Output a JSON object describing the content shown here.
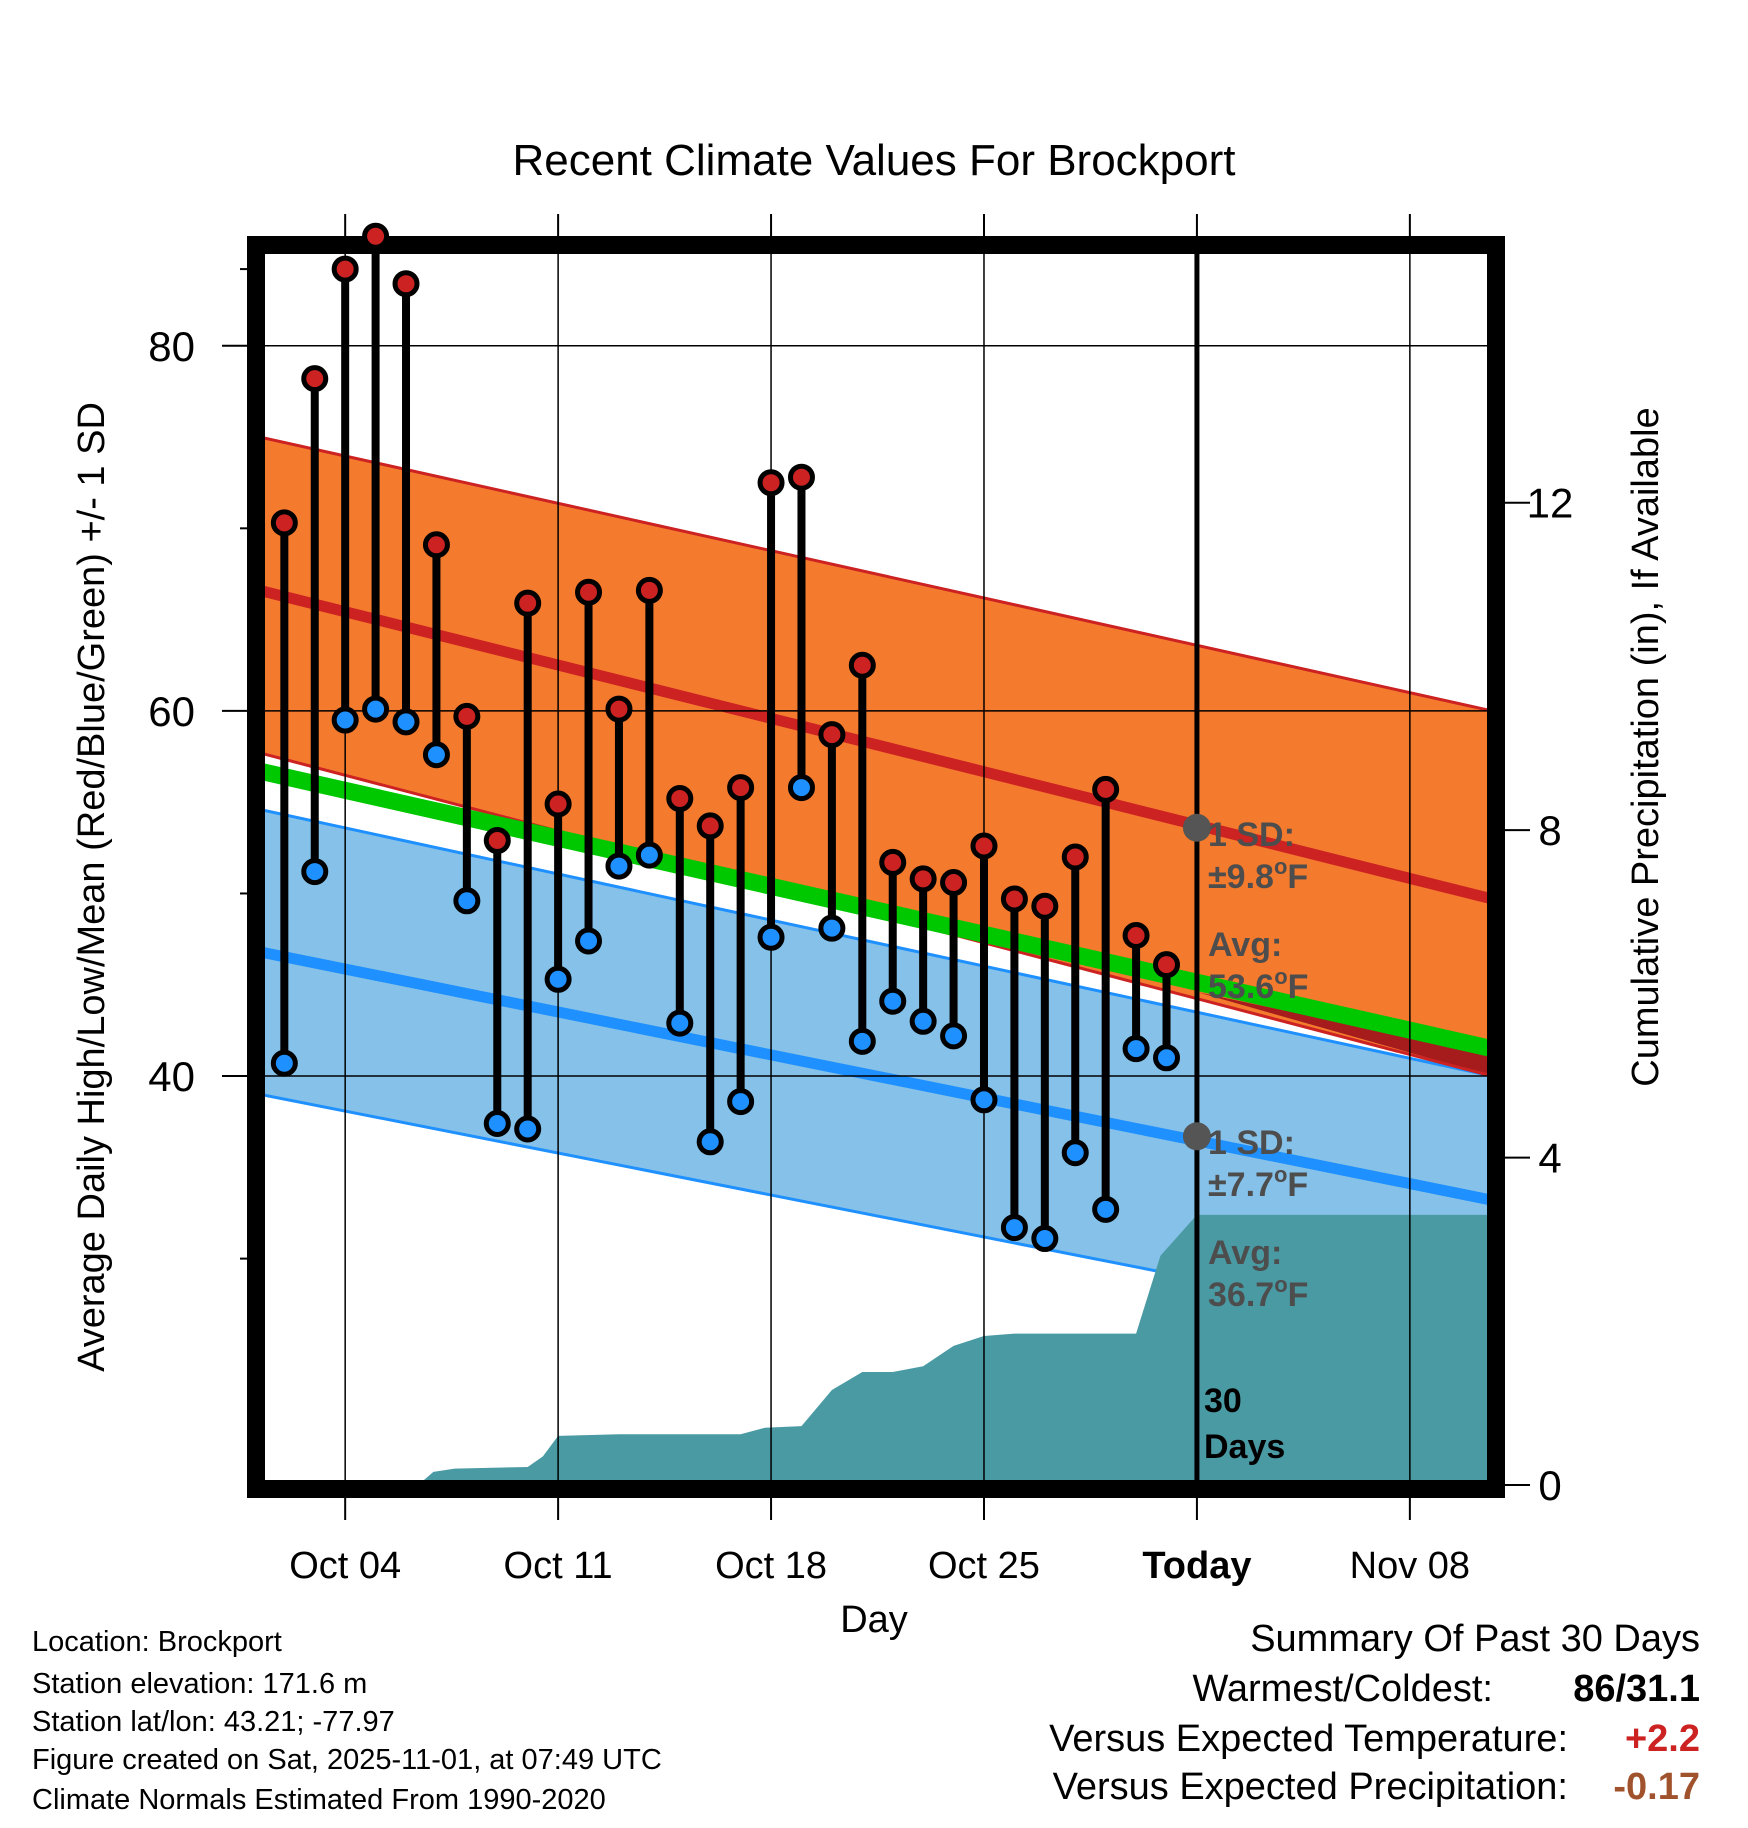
{
  "chart_data": {
    "type": "line",
    "title": "Recent Climate Values For Brockport",
    "xlabel": "Day",
    "ylabel": "Average Daily High/Low/Mean (Red/Blue/Green) +/- 1 SD",
    "y2label": "Cumulative Precipitation (in), If Available",
    "x_tick_labels": [
      "Oct 04",
      "Oct 11",
      "Oct 18",
      "Oct 25",
      "Today",
      "Nov 08"
    ],
    "x_tick_days": [
      4,
      11,
      18,
      25,
      32,
      39
    ],
    "xlim_days": [
      1.2,
      41.7
    ],
    "ylim": [
      17.6,
      85.3
    ],
    "y_ticks": [
      40,
      60,
      80
    ],
    "y2lim": [
      0,
      15.1
    ],
    "y2_ticks": [
      0,
      4,
      8,
      12
    ],
    "today_day": 32,
    "normals": {
      "high_mean": [
        66.6,
        49.7
      ],
      "high_plus_sd": [
        75.0,
        60.0
      ],
      "high_minus_sd": [
        57.7,
        40.0
      ],
      "low_mean": [
        46.8,
        33.2
      ],
      "low_plus_sd": [
        54.6,
        40.0
      ],
      "low_minus_sd": [
        39.0,
        25.7
      ],
      "avg_mean": [
        56.7,
        41.5
      ],
      "range_days": [
        1.2,
        41.7
      ]
    },
    "annotations": {
      "high_sd_label": "1 SD:",
      "high_sd_value": "±9.8°F",
      "high_avg_label": "Avg:",
      "high_avg_value": "53.6°F",
      "high_avg_point": 53.6,
      "low_sd_label": "1 SD:",
      "low_sd_value": "±7.7°F",
      "low_avg_label": "Avg:",
      "low_avg_value": "36.7°F",
      "low_avg_point": 36.7,
      "precip_label_1": "30",
      "precip_label_2": "Days"
    },
    "series": [
      {
        "name": "Daily High",
        "color": "#cc2222",
        "days": [
          2,
          3,
          4,
          5,
          6,
          7,
          8,
          9,
          10,
          11,
          12,
          13,
          14,
          15,
          16,
          17,
          18,
          19,
          20,
          21,
          22,
          23,
          24,
          25,
          26,
          27,
          28,
          29,
          30,
          31
        ],
        "values": [
          70.3,
          78.2,
          84.2,
          86.0,
          83.4,
          69.1,
          59.7,
          52.9,
          65.9,
          54.9,
          66.5,
          60.1,
          66.6,
          55.2,
          53.7,
          55.8,
          72.5,
          72.8,
          58.7,
          62.5,
          51.7,
          50.8,
          50.6,
          52.6,
          49.7,
          49.3,
          52.0,
          55.7,
          47.7,
          46.1
        ]
      },
      {
        "name": "Daily Low",
        "color": "#1e90ff",
        "days": [
          2,
          3,
          4,
          5,
          6,
          7,
          8,
          9,
          10,
          11,
          12,
          13,
          14,
          15,
          16,
          17,
          18,
          19,
          20,
          21,
          22,
          23,
          24,
          25,
          26,
          27,
          28,
          29,
          30,
          31
        ],
        "values": [
          40.7,
          51.2,
          59.5,
          60.1,
          59.4,
          57.6,
          49.6,
          37.4,
          37.1,
          45.3,
          47.4,
          51.5,
          52.1,
          42.9,
          36.4,
          38.6,
          47.6,
          55.8,
          48.1,
          41.9,
          44.1,
          43.0,
          42.2,
          38.7,
          31.7,
          31.1,
          35.8,
          32.7,
          41.5,
          41.0
        ]
      },
      {
        "name": "Cumulative Precipitation",
        "color": "#4a9aa4",
        "days": [
          1.2,
          6.4,
          6.9,
          7.6,
          10.0,
          10.5,
          11.0,
          13.0,
          17.0,
          17.8,
          19.0,
          20.0,
          21.0,
          22.0,
          23.0,
          24.0,
          25.0,
          26.0,
          30.0,
          30.8,
          32.0,
          41.7
        ],
        "values": [
          0,
          0,
          0.16,
          0.2,
          0.22,
          0.35,
          0.6,
          0.62,
          0.62,
          0.7,
          0.72,
          1.16,
          1.38,
          1.38,
          1.45,
          1.7,
          1.82,
          1.85,
          1.85,
          2.8,
          3.3,
          3.3
        ]
      }
    ]
  },
  "info": {
    "location": "Location: Brockport",
    "elevation": "Station elevation: 171.6 m",
    "latlon": "Station lat/lon: 43.21; -77.97",
    "created": "Figure created on Sat, 2025-11-01, at 07:49 UTC",
    "normals": "Climate Normals Estimated From 1990-2020"
  },
  "summary": {
    "title": "Summary Of Past 30 Days",
    "warm_cold_label": "Warmest/Coldest:",
    "warm_cold_value": "86/31.1",
    "temp_label": "Versus Expected Temperature:",
    "temp_value": "+2.2",
    "temp_color": "#cc2222",
    "precip_label": "Versus Expected Precipitation:",
    "precip_value": "-0.17",
    "precip_color": "#a0522d"
  }
}
